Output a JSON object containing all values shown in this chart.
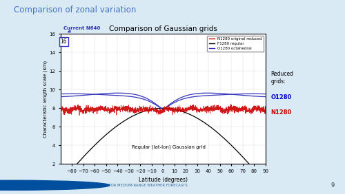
{
  "title_slide": "Comparison of zonal variation",
  "title_chart": "Comparison of Gaussian grids",
  "xlabel": "Latitude (degrees)",
  "ylabel": "Characteristic length scale (km)",
  "xlim": [
    -90,
    90
  ],
  "ylim": [
    2,
    16
  ],
  "xticks": [
    -80,
    -70,
    -60,
    -50,
    -40,
    -30,
    -20,
    -10,
    0,
    10,
    20,
    30,
    40,
    50,
    60,
    70,
    80,
    90
  ],
  "yticks": [
    2,
    4,
    6,
    8,
    10,
    12,
    14,
    16
  ],
  "legend_labels": [
    "N1280 original reduced",
    "F1280 regular",
    "O1280 octahedral"
  ],
  "legend_colors": [
    "#cc0000",
    "#000000",
    "#3333bb"
  ],
  "annotation_box": "16",
  "annotation_label": "Current N640",
  "reduced_grids_label": "Reduced\ngrids:",
  "reduced_O1280_color": "#0000cc",
  "reduced_N1280_color": "#cc0000",
  "regular_annotation": "Regular (lat-lon) Gaussian grid",
  "bg_color": "#daeaf5",
  "plot_bg": "#ffffff",
  "slide_title_color": "#4472c4",
  "current_n640_color": "#3333bb",
  "ecmwf_text_color": "#336699",
  "bottom_bg": "#c5dff0"
}
